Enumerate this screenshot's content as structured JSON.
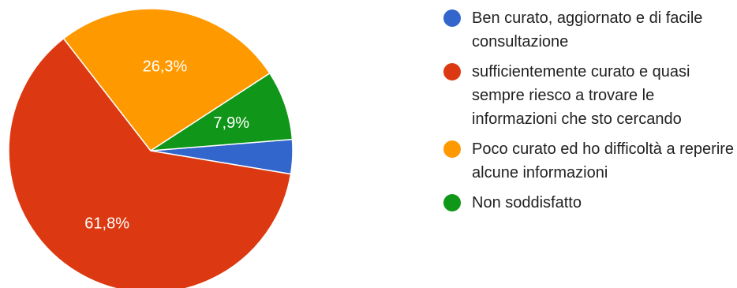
{
  "chart_data": {
    "type": "pie",
    "legend_position": "right",
    "slices": [
      {
        "label": "Ben curato, aggiornato e di facile consultazione",
        "value": 3.9,
        "display": "",
        "color": "#3366cc"
      },
      {
        "label": "sufficientemente curato e quasi sempre riesco a trovare le informazioni che sto cercando",
        "value": 61.8,
        "display": "61,8%",
        "color": "#dc3912"
      },
      {
        "label": "Poco curato ed ho difficoltà a reperire alcune informazioni",
        "value": 26.3,
        "display": "26,3%",
        "color": "#ff9900"
      },
      {
        "label": "Non soddisfatto",
        "value": 7.9,
        "display": "7,9%",
        "color": "#109618"
      }
    ]
  }
}
